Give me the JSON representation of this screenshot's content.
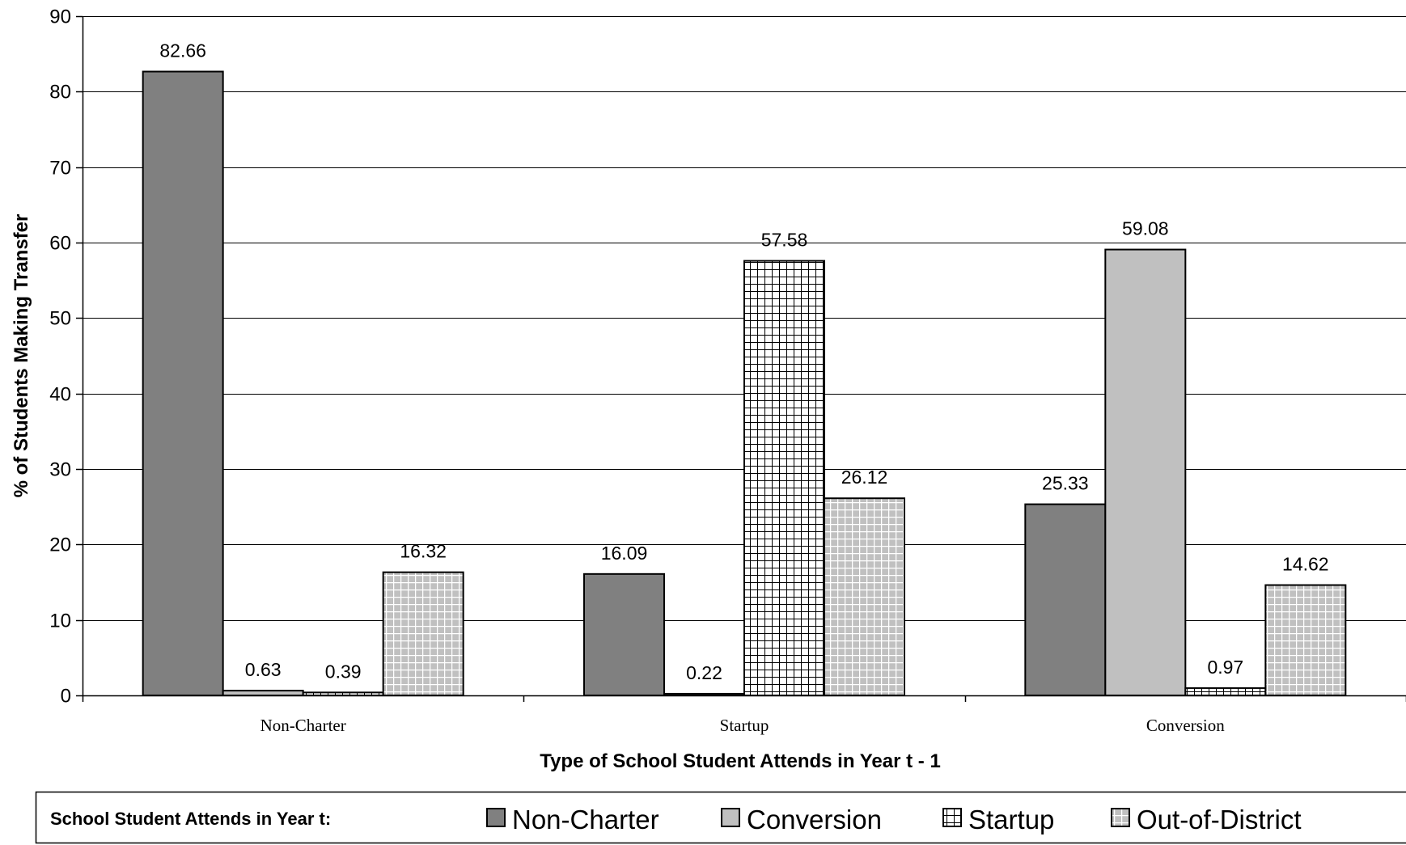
{
  "chart_data": {
    "type": "bar",
    "title": "",
    "xlabel": "Type of School Student Attends in Year t - 1",
    "ylabel": "% of Students Making Transfer",
    "ylim": [
      0,
      90
    ],
    "yticks": [
      0,
      10,
      20,
      30,
      40,
      50,
      60,
      70,
      80,
      90
    ],
    "grid": true,
    "legend_position": "bottom",
    "legend_title": "School Student Attends in Year t:",
    "categories": [
      "Non-Charter",
      "Startup",
      "Conversion"
    ],
    "series": [
      {
        "name": "Non-Charter",
        "values": [
          82.66,
          16.09,
          25.33
        ],
        "labels": [
          "82.66",
          "16.09",
          "25.33"
        ],
        "fill": "#808080",
        "pattern": "solid"
      },
      {
        "name": "Conversion",
        "values": [
          0.63,
          0.22,
          59.08
        ],
        "labels": [
          "0.63",
          "0.22",
          "59.08"
        ],
        "fill": "#c0c0c0",
        "pattern": "solid"
      },
      {
        "name": "Startup",
        "values": [
          0.39,
          57.58,
          0.97
        ],
        "labels": [
          "0.39",
          "57.58",
          "0.97"
        ],
        "fill": "#ffffff",
        "pattern": "grid"
      },
      {
        "name": "Out-of-District",
        "values": [
          16.32,
          26.12,
          14.62
        ],
        "labels": [
          "16.32",
          "26.12",
          "14.62"
        ],
        "fill": "#c0c0c0",
        "pattern": "grid-light"
      }
    ]
  }
}
